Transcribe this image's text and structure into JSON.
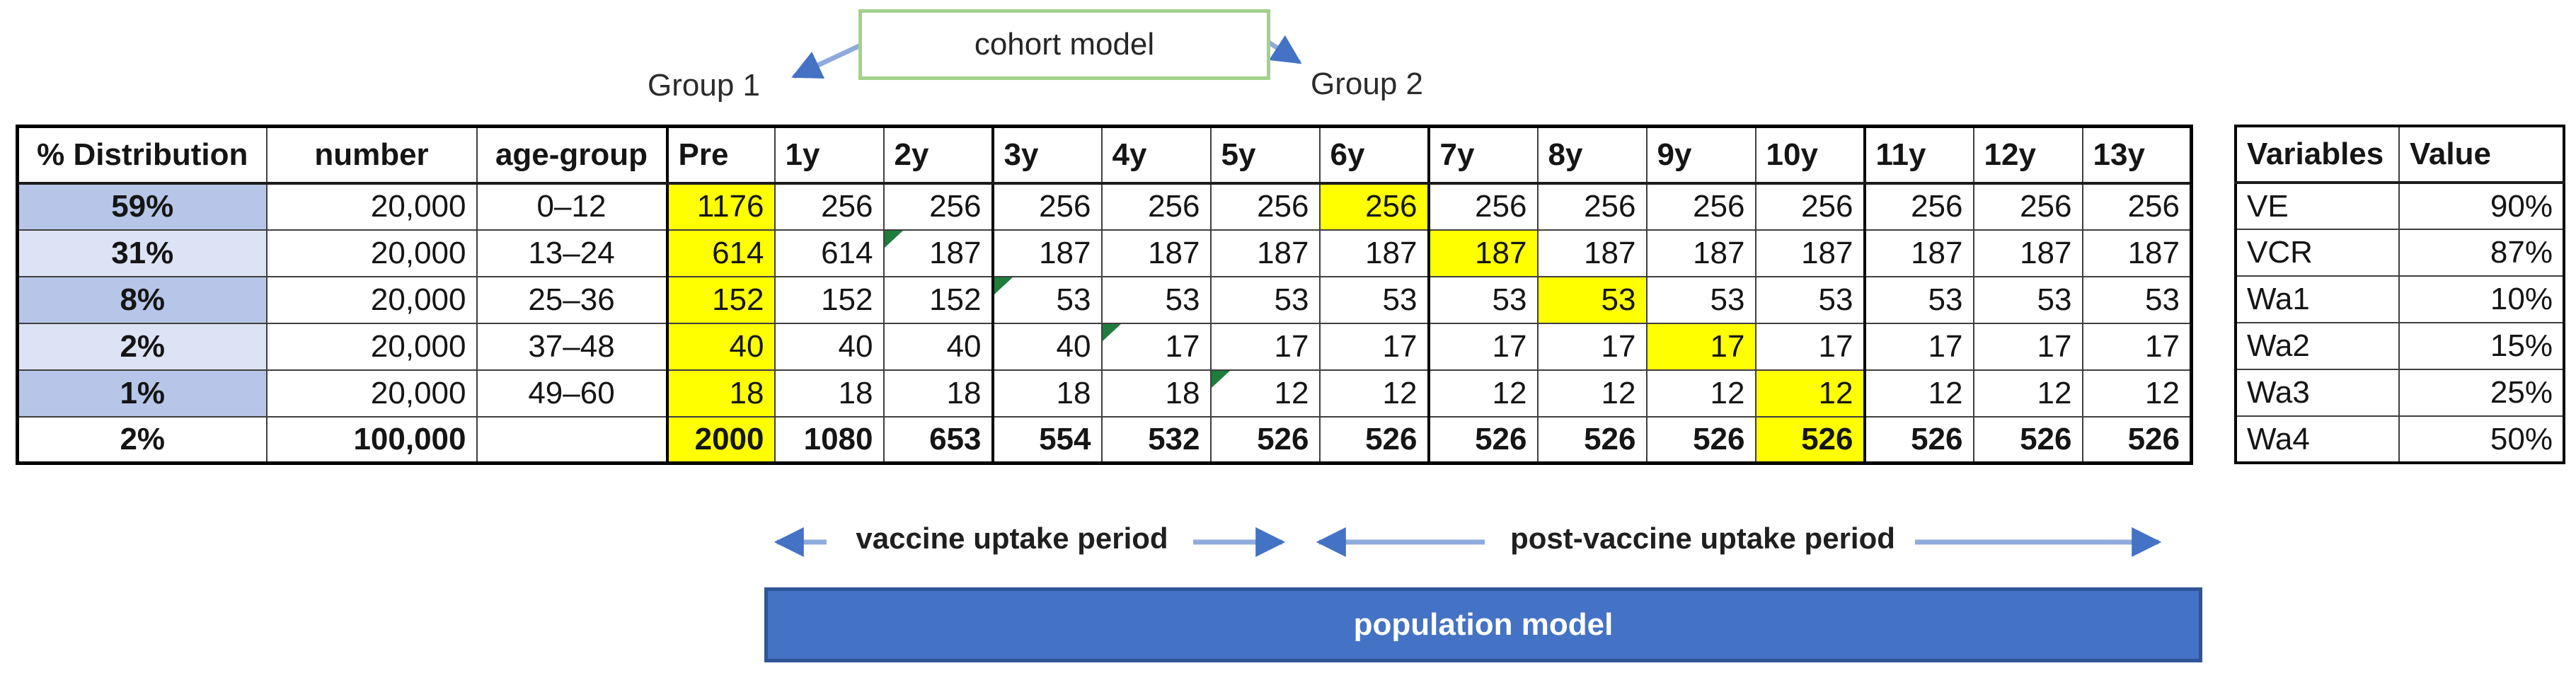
{
  "diagram": {
    "box_label": "cohort model",
    "group1": "Group 1",
    "group2": "Group 2"
  },
  "main_table": {
    "headers": [
      "% Distribution",
      "number",
      "age-group",
      "Pre",
      "1y",
      "2y",
      "3y",
      "4y",
      "5y",
      "6y",
      "7y",
      "8y",
      "9y",
      "10y",
      "11y",
      "12y",
      "13y"
    ],
    "rows": [
      {
        "distribution": "59%",
        "number": "20,000",
        "age_group": "0–12",
        "shade": "dark",
        "bold": false,
        "flag_value": null,
        "highlight_values": [
          0,
          6
        ],
        "values": [
          "1176",
          "256",
          "256",
          "256",
          "256",
          "256",
          "256",
          "256",
          "256",
          "256",
          "256",
          "256",
          "256",
          "256"
        ]
      },
      {
        "distribution": "31%",
        "number": "20,000",
        "age_group": "13–24",
        "shade": "light",
        "bold": false,
        "flag_value": 2,
        "highlight_values": [
          0,
          7
        ],
        "values": [
          "614",
          "614",
          "187",
          "187",
          "187",
          "187",
          "187",
          "187",
          "187",
          "187",
          "187",
          "187",
          "187",
          "187"
        ]
      },
      {
        "distribution": "8%",
        "number": "20,000",
        "age_group": "25–36",
        "shade": "dark",
        "bold": false,
        "flag_value": 3,
        "highlight_values": [
          0,
          8
        ],
        "values": [
          "152",
          "152",
          "152",
          "53",
          "53",
          "53",
          "53",
          "53",
          "53",
          "53",
          "53",
          "53",
          "53",
          "53"
        ]
      },
      {
        "distribution": "2%",
        "number": "20,000",
        "age_group": "37–48",
        "shade": "light",
        "bold": false,
        "flag_value": 4,
        "highlight_values": [
          0,
          9
        ],
        "values": [
          "40",
          "40",
          "40",
          "40",
          "17",
          "17",
          "17",
          "17",
          "17",
          "17",
          "17",
          "17",
          "17",
          "17"
        ]
      },
      {
        "distribution": "1%",
        "number": "20,000",
        "age_group": "49–60",
        "shade": "dark",
        "bold": false,
        "flag_value": 5,
        "highlight_values": [
          0,
          10
        ],
        "values": [
          "18",
          "18",
          "18",
          "18",
          "18",
          "12",
          "12",
          "12",
          "12",
          "12",
          "12",
          "12",
          "12",
          "12"
        ]
      },
      {
        "distribution": "2%",
        "number": "100,000",
        "age_group": "",
        "shade": "none",
        "bold": true,
        "flag_value": null,
        "highlight_values": [
          0,
          10
        ],
        "values": [
          "2000",
          "1080",
          "653",
          "554",
          "532",
          "526",
          "526",
          "526",
          "526",
          "526",
          "526",
          "526",
          "526",
          "526"
        ]
      }
    ]
  },
  "variables_table": {
    "headers": [
      "Variables",
      "Value"
    ],
    "rows": [
      {
        "name": "VE",
        "value": "90%"
      },
      {
        "name": "VCR",
        "value": "87%"
      },
      {
        "name": "Wa1",
        "value": "10%"
      },
      {
        "name": "Wa2",
        "value": "15%"
      },
      {
        "name": "Wa3",
        "value": "25%"
      },
      {
        "name": "Wa4",
        "value": "50%"
      }
    ]
  },
  "annotations": {
    "vaccine_period": "vaccine uptake period",
    "post_vaccine_period": "post-vaccine uptake period",
    "population_bar": "population model"
  },
  "colors": {
    "highlight_yellow": "#FFFF00",
    "distribution_dark": "#B7C6E8",
    "distribution_light": "#DCE3F4",
    "bar_fill": "#4472C4",
    "bar_border": "#2F5597",
    "arrow_head": "#4472C4",
    "arrow_line": "#8FAADC",
    "box_border": "#A3D18C",
    "flag_green": "#1E7C3C"
  }
}
